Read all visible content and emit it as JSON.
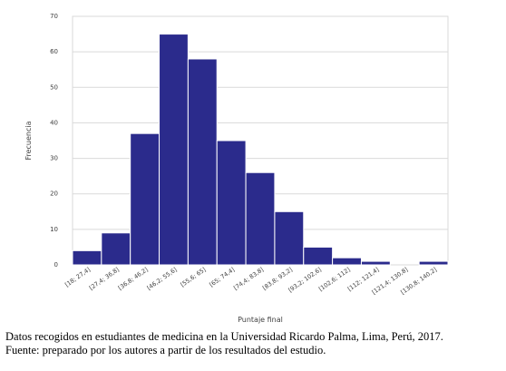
{
  "chart_data": {
    "type": "bar",
    "categories": [
      "[18; 27,4]",
      "[27,4; 36,8]",
      "[36,8; 46,2]",
      "[46,2; 55,6]",
      "[55,6; 65]",
      "[65; 74,4]",
      "[74,4; 83,8]",
      "[83,8; 93,2]",
      "[93,2; 102,6]",
      "[102,6; 112]",
      "[112; 121,4]",
      "[121,4; 130,8]",
      "[130,8; 140,2]"
    ],
    "values": [
      4,
      9,
      37,
      65,
      58,
      35,
      26,
      15,
      5,
      2,
      1,
      0,
      1
    ],
    "yticks": [
      0,
      10,
      20,
      30,
      40,
      50,
      60,
      70
    ],
    "ylim": [
      0,
      70
    ],
    "xlabel": "Puntaje final",
    "ylabel": "Frecuencia",
    "bar_color": "#2b2b8c",
    "grid": "horizontal"
  },
  "notes": {
    "line1": "Datos recogidos en estudiantes de medicina en la Universidad Ricardo Palma, Lima, Perú, 2017.",
    "line2": "Fuente: preparado por los autores a partir de los resultados del estudio."
  }
}
